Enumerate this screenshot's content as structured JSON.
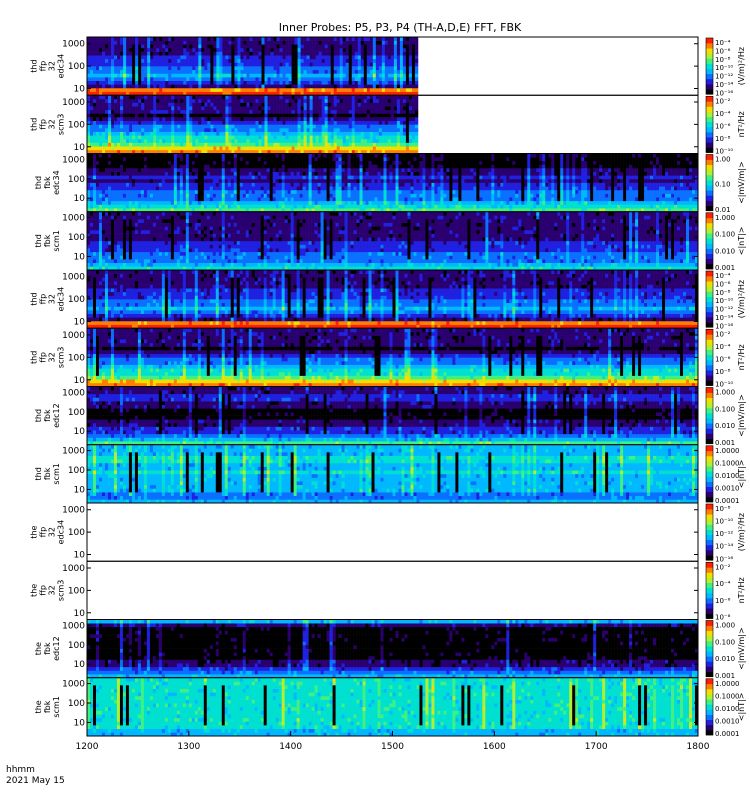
{
  "chart_data": {
    "type": "heatmap",
    "title": "Inner Probes: P5, P3, P4 (TH-A,D,E) FFT, FBK",
    "x_axis": {
      "range": [
        1200,
        1800
      ],
      "ticks": [
        "1200",
        "1300",
        "1400",
        "1500",
        "1600",
        "1700",
        "1800"
      ],
      "unit_label": "hhmm",
      "date_label": "2021 May 15"
    },
    "colormap": [
      "#000000",
      "#2a0070",
      "#2020e0",
      "#0a70ff",
      "#00b8ff",
      "#00e0d0",
      "#40f080",
      "#b0f030",
      "#f0e000",
      "#ff8000",
      "#ff2000"
    ],
    "panels": [
      {
        "probe": "thd",
        "mode": "ffp",
        "chan": "32",
        "sensor": "edc34",
        "label": [
          "thd",
          "ffp",
          "32",
          "edc34"
        ],
        "ylim": [
          5,
          2000
        ],
        "yticks": [
          "10",
          "100",
          "1000"
        ],
        "cb_label": "(V/m)²/Hz",
        "cb_ticks": [
          "10⁻⁴",
          "10⁻⁶",
          "10⁻⁸",
          "10⁻¹⁰",
          "10⁻¹²",
          "10⁻¹⁴",
          "10⁻¹⁶"
        ],
        "data_end": 1525,
        "style": "ffp-e"
      },
      {
        "probe": "thd",
        "mode": "ffp",
        "chan": "32",
        "sensor": "scm3",
        "label": [
          "thd",
          "ffp",
          "32",
          "scm3"
        ],
        "ylim": [
          5,
          2000
        ],
        "yticks": [
          "10",
          "100",
          "1000"
        ],
        "cb_label": "nT²/Hz",
        "cb_ticks": [
          "10⁻²",
          "10⁻⁴",
          "10⁻⁶",
          "10⁻⁸",
          "10⁻¹⁰"
        ],
        "data_end": 1525,
        "style": "ffp-b"
      },
      {
        "probe": "thd",
        "mode": "fbk",
        "chan": "",
        "sensor": "edc34",
        "label": [
          "thd",
          "fbk",
          "edc34"
        ],
        "ylim": [
          2,
          2000
        ],
        "yticks": [
          "10",
          "100",
          "1000"
        ],
        "cb_label": "<|mV/m|>",
        "cb_ticks": [
          "1.00",
          "0.10",
          "0.01"
        ],
        "data_end": 1800,
        "style": "fbk-e"
      },
      {
        "probe": "thd",
        "mode": "fbk",
        "chan": "",
        "sensor": "scm1",
        "label": [
          "thd",
          "fbk",
          "scm1"
        ],
        "ylim": [
          2,
          2000
        ],
        "yticks": [
          "10",
          "100",
          "1000"
        ],
        "cb_label": "<|nT|>",
        "cb_ticks": [
          "1.000",
          "0.100",
          "0.010",
          "0.001"
        ],
        "data_end": 1800,
        "style": "fbk-b"
      },
      {
        "probe": "thd",
        "mode": "ffp",
        "chan": "32",
        "sensor": "edc34",
        "label": [
          "thd",
          "ffp",
          "32",
          "edc34"
        ],
        "ylim": [
          5,
          2000
        ],
        "yticks": [
          "10",
          "100",
          "1000"
        ],
        "cb_label": "(V/m)²/Hz",
        "cb_ticks": [
          "10⁻⁴",
          "10⁻⁶",
          "10⁻⁸",
          "10⁻¹⁰",
          "10⁻¹²",
          "10⁻¹⁴",
          "10⁻¹⁶"
        ],
        "data_end": 1800,
        "style": "ffp-e"
      },
      {
        "probe": "thd",
        "mode": "ffp",
        "chan": "32",
        "sensor": "scm3",
        "label": [
          "thd",
          "ffp",
          "32",
          "scm3"
        ],
        "ylim": [
          5,
          2000
        ],
        "yticks": [
          "10",
          "100",
          "1000"
        ],
        "cb_label": "nT²/Hz",
        "cb_ticks": [
          "10⁻²",
          "10⁻⁴",
          "10⁻⁶",
          "10⁻⁸",
          "10⁻¹⁰"
        ],
        "data_end": 1800,
        "style": "ffp-b"
      },
      {
        "probe": "thd",
        "mode": "fbk",
        "chan": "",
        "sensor": "edc12",
        "label": [
          "thd",
          "fbk",
          "edc12"
        ],
        "ylim": [
          2,
          2000
        ],
        "yticks": [
          "10",
          "100",
          "1000"
        ],
        "cb_label": "<|mV/m|>",
        "cb_ticks": [
          "1.000",
          "0.100",
          "0.010",
          "0.001"
        ],
        "data_end": 1800,
        "style": "fbk-e2"
      },
      {
        "probe": "thd",
        "mode": "fbk",
        "chan": "",
        "sensor": "scm1",
        "label": [
          "thd",
          "fbk",
          "scm1"
        ],
        "ylim": [
          2,
          2000
        ],
        "yticks": [
          "10",
          "100",
          "1000"
        ],
        "cb_label": "<|nT|>",
        "cb_ticks": [
          "1.0000",
          "0.1000",
          "0.0100",
          "0.0010",
          "0.0001"
        ],
        "data_end": 1800,
        "style": "fbk-b2"
      },
      {
        "probe": "the",
        "mode": "ffp",
        "chan": "32",
        "sensor": "edc34",
        "label": [
          "the",
          "ffp",
          "32",
          "edc34"
        ],
        "ylim": [
          5,
          2000
        ],
        "yticks": [
          "10",
          "100",
          "1000"
        ],
        "cb_label": "(V/m)²/Hz",
        "cb_ticks": [
          "10⁻⁸",
          "10⁻¹⁰",
          "10⁻¹²",
          "10⁻¹⁴",
          "10⁻¹⁶"
        ],
        "data_end": 1200,
        "style": "empty"
      },
      {
        "probe": "the",
        "mode": "ffp",
        "chan": "32",
        "sensor": "scm3",
        "label": [
          "the",
          "ffp",
          "32",
          "scm3"
        ],
        "ylim": [
          5,
          2000
        ],
        "yticks": [
          "10",
          "100",
          "1000"
        ],
        "cb_label": "nT²/Hz",
        "cb_ticks": [
          "10⁻²",
          "10⁻⁴",
          "10⁻⁶",
          "10⁻⁸"
        ],
        "data_end": 1200,
        "style": "empty"
      },
      {
        "probe": "the",
        "mode": "fbk",
        "chan": "",
        "sensor": "edc12",
        "label": [
          "the",
          "fbk",
          "edc12"
        ],
        "ylim": [
          2,
          2000
        ],
        "yticks": [
          "10",
          "100",
          "1000"
        ],
        "cb_label": "<|mV/m|>",
        "cb_ticks": [
          "1.000",
          "0.100",
          "0.010",
          "0.001"
        ],
        "data_end": 1800,
        "style": "fbk-e3"
      },
      {
        "probe": "the",
        "mode": "fbk",
        "chan": "",
        "sensor": "scm1",
        "label": [
          "the",
          "fbk",
          "scm1"
        ],
        "ylim": [
          2,
          2000
        ],
        "yticks": [
          "10",
          "100",
          "1000"
        ],
        "cb_label": "<|nT|>",
        "cb_ticks": [
          "1.0000",
          "0.1000",
          "0.0100",
          "0.0010",
          "0.0001"
        ],
        "data_end": 1800,
        "style": "fbk-b3"
      }
    ]
  }
}
